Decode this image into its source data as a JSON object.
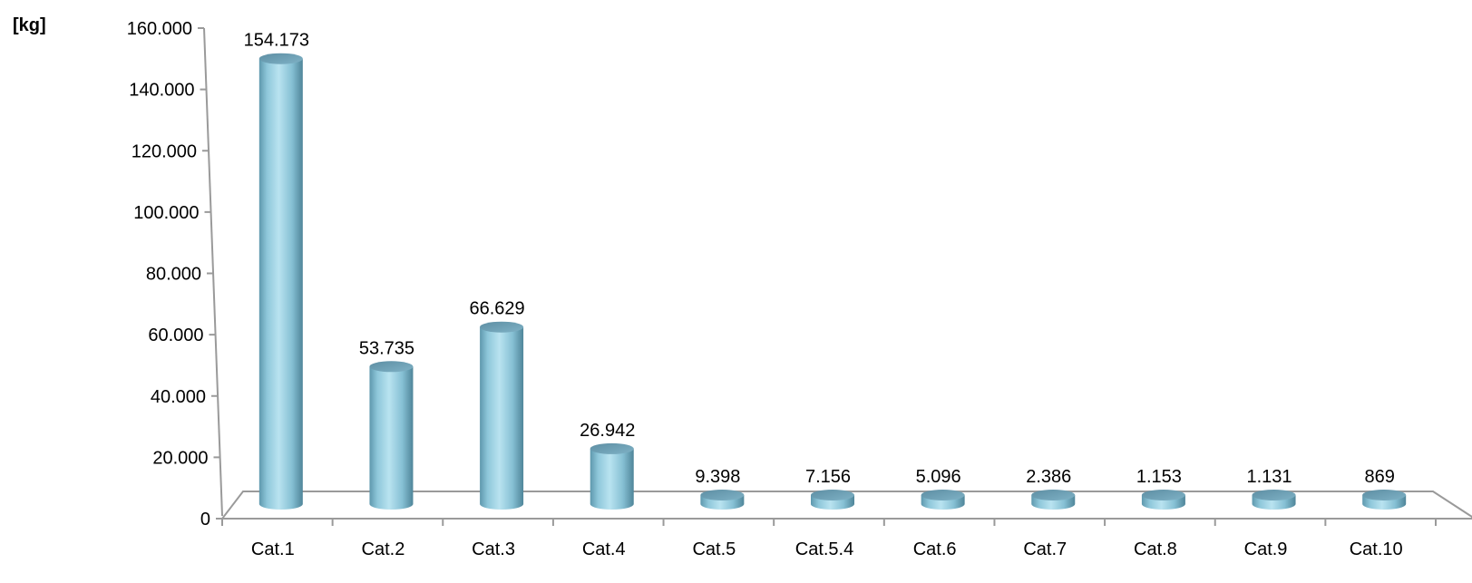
{
  "chart_data": {
    "type": "bar",
    "style": "3d-cylinder",
    "ylabel": "[kg]",
    "ylim": [
      0,
      160000
    ],
    "yticks": [
      0,
      20000,
      40000,
      60000,
      80000,
      100000,
      120000,
      140000,
      160000
    ],
    "ytick_labels": [
      "0",
      "20.000",
      "40.000",
      "60.000",
      "80.000",
      "100.000",
      "120.000",
      "140.000",
      "160.000"
    ],
    "categories": [
      "Cat.1",
      "Cat.2",
      "Cat.3",
      "Cat.4",
      "Cat.5",
      "Cat.5.4",
      "Cat.6",
      "Cat.7",
      "Cat.8",
      "Cat.9",
      "Cat.10"
    ],
    "values": [
      154173,
      53735,
      66629,
      26942,
      9398,
      7156,
      5096,
      2386,
      1153,
      1131,
      869
    ],
    "value_labels": [
      "154.173",
      "53.735",
      "66.629",
      "26.942",
      "9.398",
      "7.156",
      "5.096",
      "2.386",
      "1.153",
      "1.131",
      "869"
    ],
    "grid": false,
    "legend": "none",
    "bar_color": "#8fc9dd"
  }
}
